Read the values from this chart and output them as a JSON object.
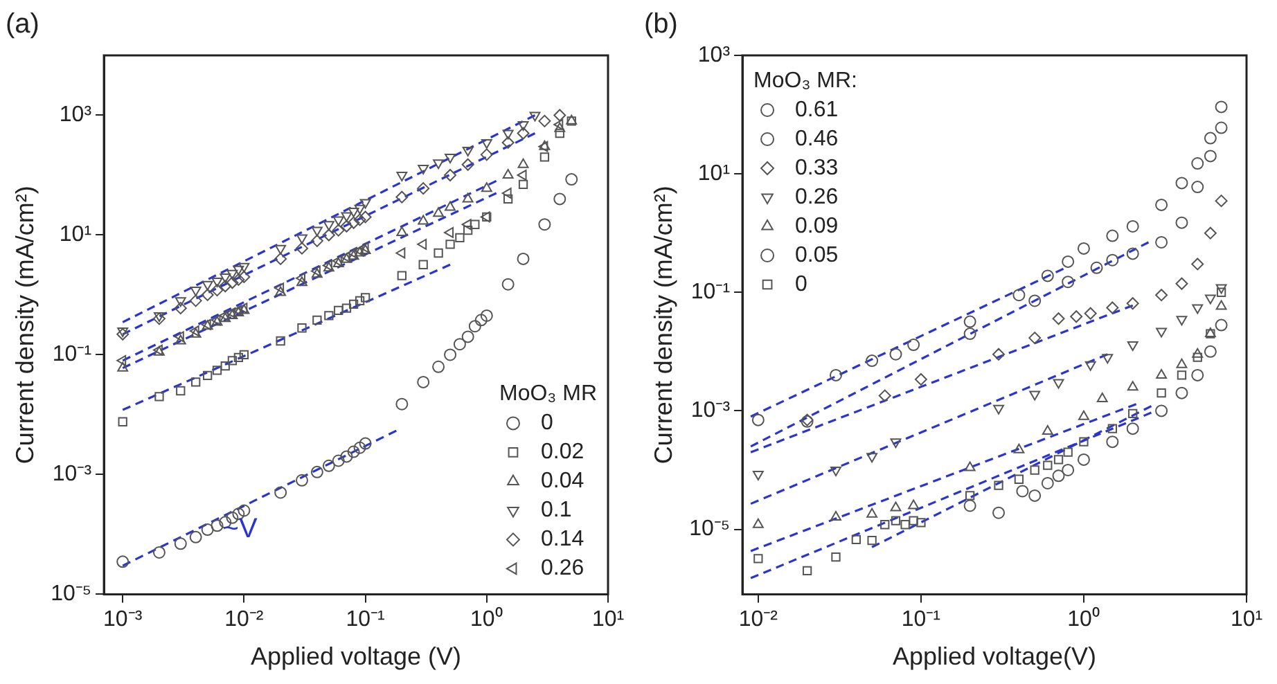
{
  "chart_data": [
    {
      "type": "scatter",
      "title": "(a)",
      "xlabel": "Applied voltage (V)",
      "ylabel": "Current density (mA/cm²)",
      "legend_title": "MoO₃ MR",
      "legend": "bottom right",
      "log": "xy",
      "grid": false,
      "xlim": [
        0.0007,
        10
      ],
      "xticks": [
        {
          "value": 0.001,
          "label": "10⁻³"
        },
        {
          "value": 0.01,
          "label": "10⁻²"
        },
        {
          "value": 0.1,
          "label": "10⁻¹"
        },
        {
          "value": 1,
          "label": "10⁰"
        },
        {
          "value": 10,
          "label": "10¹"
        }
      ],
      "ylim": [
        1e-05,
        10000
      ],
      "yticks": [
        {
          "value": 1e-05,
          "label": "10⁻⁵"
        },
        {
          "value": 0.001,
          "label": "10⁻³"
        },
        {
          "value": 0.1,
          "label": "10⁻¹"
        },
        {
          "value": 10,
          "label": "10¹"
        },
        {
          "value": 1000,
          "label": "10³"
        }
      ],
      "annotations": [
        "~V"
      ],
      "series": [
        {
          "name": "0",
          "color": "#555555",
          "marker": "circle",
          "x": [
            0.001,
            0.002,
            0.003,
            0.004,
            0.005,
            0.006,
            0.007,
            0.008,
            0.009,
            0.01,
            0.02,
            0.03,
            0.04,
            0.05,
            0.06,
            0.07,
            0.08,
            0.09,
            0.1,
            0.2,
            0.3,
            0.4,
            0.5,
            0.6,
            0.7,
            0.8,
            0.9,
            1,
            1.5,
            2,
            3,
            4,
            5
          ],
          "values": [
            3.5e-05,
            5e-05,
            7e-05,
            9e-05,
            0.00012,
            0.00014,
            0.00016,
            0.00019,
            0.00022,
            0.00025,
            0.0005,
            0.0008,
            0.0011,
            0.0014,
            0.0017,
            0.002,
            0.0024,
            0.0028,
            0.0033,
            0.015,
            0.035,
            0.063,
            0.1,
            0.15,
            0.2,
            0.3,
            0.38,
            0.45,
            1.5,
            4,
            15,
            40,
            85
          ]
        },
        {
          "name": "0.02",
          "color": "#555555",
          "marker": "square",
          "x": [
            0.001,
            0.002,
            0.003,
            0.004,
            0.005,
            0.006,
            0.007,
            0.008,
            0.009,
            0.01,
            0.02,
            0.03,
            0.04,
            0.05,
            0.06,
            0.07,
            0.08,
            0.09,
            0.1,
            0.2,
            0.3,
            0.4,
            0.5,
            0.6,
            0.7,
            0.8,
            1,
            1.5,
            2,
            3,
            4,
            5
          ],
          "values": [
            0.0076,
            0.02,
            0.025,
            0.035,
            0.045,
            0.055,
            0.065,
            0.08,
            0.09,
            0.1,
            0.17,
            0.28,
            0.38,
            0.45,
            0.55,
            0.6,
            0.7,
            0.8,
            0.9,
            2.1,
            3.2,
            5,
            7,
            9,
            12,
            15,
            20,
            40,
            70,
            200,
            500,
            800
          ]
        },
        {
          "name": "0.04",
          "color": "#555555",
          "marker": "triangle",
          "x": [
            0.001,
            0.002,
            0.003,
            0.004,
            0.005,
            0.006,
            0.007,
            0.008,
            0.009,
            0.01,
            0.02,
            0.03,
            0.04,
            0.05,
            0.06,
            0.07,
            0.08,
            0.09,
            0.1,
            0.2,
            0.3,
            0.4,
            0.5,
            0.7,
            1,
            1.5,
            2,
            3,
            4,
            5
          ],
          "values": [
            0.06,
            0.11,
            0.17,
            0.22,
            0.3,
            0.35,
            0.4,
            0.45,
            0.5,
            0.55,
            1.1,
            1.6,
            2.2,
            2.8,
            3.3,
            3.9,
            4.4,
            5,
            5.5,
            11,
            17,
            23,
            29,
            40,
            60,
            100,
            150,
            300,
            600,
            800
          ]
        },
        {
          "name": "0.1",
          "color": "#555555",
          "marker": "triangle-down",
          "x": [
            0.001,
            0.002,
            0.003,
            0.004,
            0.005,
            0.006,
            0.007,
            0.008,
            0.009,
            0.01,
            0.02,
            0.03,
            0.04,
            0.05,
            0.06,
            0.07,
            0.08,
            0.09,
            0.1,
            0.2,
            0.3,
            0.4,
            0.5,
            0.7,
            1,
            1.5,
            2,
            2.5
          ],
          "values": [
            0.25,
            0.45,
            0.8,
            1.2,
            1.5,
            1.7,
            2,
            2.3,
            2.7,
            3,
            6,
            9,
            12,
            15,
            18,
            21,
            25,
            28,
            35,
            100,
            130,
            160,
            200,
            260,
            350,
            500,
            700,
            1000
          ]
        },
        {
          "name": "0.14",
          "color": "#555555",
          "marker": "diamond",
          "x": [
            0.001,
            0.002,
            0.003,
            0.004,
            0.005,
            0.006,
            0.007,
            0.008,
            0.009,
            0.01,
            0.02,
            0.03,
            0.04,
            0.05,
            0.06,
            0.07,
            0.08,
            0.09,
            0.1,
            0.2,
            0.3,
            0.5,
            0.7,
            1,
            1.5,
            2,
            3,
            4
          ],
          "values": [
            0.22,
            0.4,
            0.6,
            0.8,
            1,
            1.2,
            1.4,
            1.6,
            1.8,
            2,
            4,
            6,
            8,
            10,
            12,
            14,
            16,
            18,
            20,
            43,
            60,
            100,
            150,
            220,
            350,
            500,
            800,
            1000
          ]
        },
        {
          "name": "0.26",
          "color": "#555555",
          "marker": "triangle-left",
          "x": [
            0.001,
            0.002,
            0.003,
            0.004,
            0.005,
            0.006,
            0.007,
            0.008,
            0.009,
            0.01,
            0.02,
            0.03,
            0.04,
            0.05,
            0.06,
            0.07,
            0.08,
            0.09,
            0.1,
            0.2,
            0.3,
            0.5,
            0.7,
            1,
            1.5,
            2,
            3,
            4
          ],
          "values": [
            0.08,
            0.12,
            0.2,
            0.25,
            0.32,
            0.38,
            0.45,
            0.5,
            0.55,
            0.6,
            1.3,
            1.9,
            2.5,
            3.1,
            3.7,
            4.3,
            5,
            5.5,
            6.2,
            5,
            7,
            11,
            15,
            20,
            50,
            100,
            300,
            700
          ]
        },
        {
          "type": "line",
          "color": "#2a35d0",
          "marker": "none",
          "line_style": "dashed",
          "x": [
            0.001,
            2.5
          ],
          "values": [
            0.35,
            1000
          ]
        },
        {
          "type": "line",
          "color": "#2a35d0",
          "marker": "none",
          "line_style": "dashed",
          "x": [
            0.001,
            2.5
          ],
          "values": [
            0.22,
            500
          ]
        },
        {
          "type": "line",
          "color": "#2a35d0",
          "marker": "none",
          "line_style": "dashed",
          "x": [
            0.001,
            1.2
          ],
          "values": [
            0.08,
            80
          ]
        },
        {
          "type": "line",
          "color": "#2a35d0",
          "marker": "none",
          "line_style": "dashed",
          "x": [
            0.001,
            1.2
          ],
          "values": [
            0.06,
            50
          ]
        },
        {
          "type": "line",
          "color": "#2a35d0",
          "marker": "none",
          "line_style": "dashed",
          "x": [
            0.001,
            0.5
          ],
          "values": [
            0.012,
            3.2
          ]
        },
        {
          "type": "line",
          "color": "#2a35d0",
          "marker": "none",
          "line_style": "dashed",
          "x": [
            0.001,
            0.18
          ],
          "values": [
            3e-05,
            0.0054
          ]
        }
      ]
    },
    {
      "type": "scatter",
      "title": "(b)",
      "xlabel": "Applied voltage(V)",
      "ylabel": "Current density (mA/cm²)",
      "legend_title": "MoO₃ MR:",
      "legend": "top left",
      "log": "xy",
      "grid": false,
      "xlim": [
        0.008,
        10
      ],
      "xticks": [
        {
          "value": 0.01,
          "label": "10⁻²"
        },
        {
          "value": 0.1,
          "label": "10⁻¹"
        },
        {
          "value": 1,
          "label": "10⁰"
        },
        {
          "value": 10,
          "label": "10¹"
        }
      ],
      "ylim": [
        8e-07,
        1000
      ],
      "yticks": [
        {
          "value": 1e-05,
          "label": "10⁻⁵"
        },
        {
          "value": 0.001,
          "label": "10⁻³"
        },
        {
          "value": 0.1,
          "label": "10⁻¹"
        },
        {
          "value": 10,
          "label": "10¹"
        },
        {
          "value": 1000,
          "label": "10³"
        }
      ],
      "series": [
        {
          "name": "0.61",
          "color": "#555555",
          "marker": "circle",
          "x": [
            0.01,
            0.03,
            0.05,
            0.07,
            0.09,
            0.2,
            0.4,
            0.6,
            0.8,
            1,
            1.5,
            2,
            3,
            4,
            5,
            6,
            7
          ],
          "values": [
            0.0007,
            0.004,
            0.007,
            0.009,
            0.013,
            0.032,
            0.09,
            0.19,
            0.33,
            0.55,
            0.9,
            1.3,
            3,
            7,
            15,
            40,
            135
          ]
        },
        {
          "name": "0.46",
          "color": "#555555",
          "marker": "circle",
          "x": [
            0.02,
            0.2,
            0.5,
            0.8,
            1.2,
            1.5,
            2,
            3,
            4,
            5,
            6,
            7
          ],
          "values": [
            0.00066,
            0.02,
            0.072,
            0.15,
            0.26,
            0.35,
            0.45,
            0.7,
            1.5,
            6,
            20,
            60
          ]
        },
        {
          "name": "0.33",
          "color": "#555555",
          "marker": "diamond",
          "x": [
            0.02,
            0.06,
            0.1,
            0.3,
            0.5,
            0.7,
            0.9,
            1.1,
            1.5,
            2,
            3,
            4,
            5,
            6,
            7
          ],
          "values": [
            0.0007,
            0.0018,
            0.0034,
            0.009,
            0.017,
            0.036,
            0.039,
            0.044,
            0.055,
            0.065,
            0.09,
            0.14,
            0.3,
            1,
            3.5
          ]
        },
        {
          "name": "0.26",
          "color": "#555555",
          "marker": "triangle-down",
          "x": [
            0.01,
            0.03,
            0.05,
            0.07,
            0.3,
            0.5,
            0.7,
            1.1,
            1.4,
            2,
            3,
            4,
            5,
            6,
            7
          ],
          "values": [
            8.5e-05,
            0.0001,
            0.00017,
            0.0003,
            0.0011,
            0.0019,
            0.003,
            0.006,
            0.008,
            0.013,
            0.022,
            0.035,
            0.055,
            0.08,
            0.12
          ]
        },
        {
          "name": "0.09",
          "color": "#555555",
          "marker": "triangle",
          "x": [
            0.01,
            0.03,
            0.05,
            0.07,
            0.09,
            0.2,
            0.4,
            0.6,
            1,
            1.3,
            2,
            3,
            4,
            5,
            6,
            7
          ],
          "values": [
            1.2e-05,
            1.6e-05,
            1.8e-05,
            2.3e-05,
            2.5e-05,
            0.00011,
            0.00022,
            0.00045,
            0.0008,
            0.0016,
            0.0025,
            0.004,
            0.006,
            0.009,
            0.02,
            0.058
          ]
        },
        {
          "name": "0.05",
          "color": "#555555",
          "marker": "circle",
          "x": [
            0.2,
            0.3,
            0.42,
            0.5,
            0.6,
            0.7,
            0.8,
            1,
            1.5,
            2,
            3,
            4,
            5,
            6,
            7
          ],
          "values": [
            2.5e-05,
            1.9e-05,
            4.4e-05,
            3.7e-05,
            6e-05,
            8e-05,
            0.0001,
            0.00015,
            0.0003,
            0.0005,
            0.001,
            0.002,
            0.004,
            0.01,
            0.028
          ]
        },
        {
          "name": "0",
          "color": "#555555",
          "marker": "square",
          "x": [
            0.01,
            0.02,
            0.03,
            0.04,
            0.05,
            0.06,
            0.07,
            0.08,
            0.09,
            0.1,
            0.2,
            0.3,
            0.4,
            0.5,
            0.6,
            0.7,
            0.8,
            1,
            1.5,
            2,
            3,
            4,
            5,
            6,
            7
          ],
          "values": [
            3.2e-06,
            2e-06,
            3.4e-06,
            6.7e-06,
            6.5e-06,
            1.2e-05,
            1.4e-05,
            1.2e-05,
            1.4e-05,
            1.3e-05,
            3.7e-05,
            5.5e-05,
            7e-05,
            0.0001,
            0.00012,
            0.00015,
            0.0002,
            0.0003,
            0.0005,
            0.0009,
            0.002,
            0.004,
            0.008,
            0.02,
            0.1
          ]
        },
        {
          "type": "line",
          "color": "#2a35d0",
          "marker": "none",
          "line_style": "dashed",
          "x": [
            0.009,
            0.75
          ],
          "values": [
            0.0008,
            0.25
          ]
        },
        {
          "type": "line",
          "color": "#2a35d0",
          "marker": "none",
          "line_style": "dashed",
          "x": [
            0.009,
            2.5
          ],
          "values": [
            0.00025,
            0.7
          ]
        },
        {
          "type": "line",
          "color": "#2a35d0",
          "marker": "none",
          "line_style": "dashed",
          "x": [
            0.009,
            2
          ],
          "values": [
            0.0002,
            0.06
          ]
        },
        {
          "type": "line",
          "color": "#2a35d0",
          "marker": "none",
          "line_style": "dashed",
          "x": [
            0.009,
            1.4
          ],
          "values": [
            2.7e-05,
            0.009
          ]
        },
        {
          "type": "line",
          "color": "#2a35d0",
          "marker": "none",
          "line_style": "dashed",
          "x": [
            0.009,
            2.1
          ],
          "values": [
            4.3e-06,
            0.0013
          ]
        },
        {
          "type": "line",
          "color": "#2a35d0",
          "marker": "none",
          "line_style": "dashed",
          "x": [
            0.009,
            2.6
          ],
          "values": [
            1.5e-06,
            0.00093
          ]
        },
        {
          "type": "line",
          "color": "#2a35d0",
          "marker": "none",
          "line_style": "dashed",
          "x": [
            0.05,
            2.6
          ],
          "values": [
            5e-06,
            0.0012
          ]
        }
      ]
    }
  ]
}
